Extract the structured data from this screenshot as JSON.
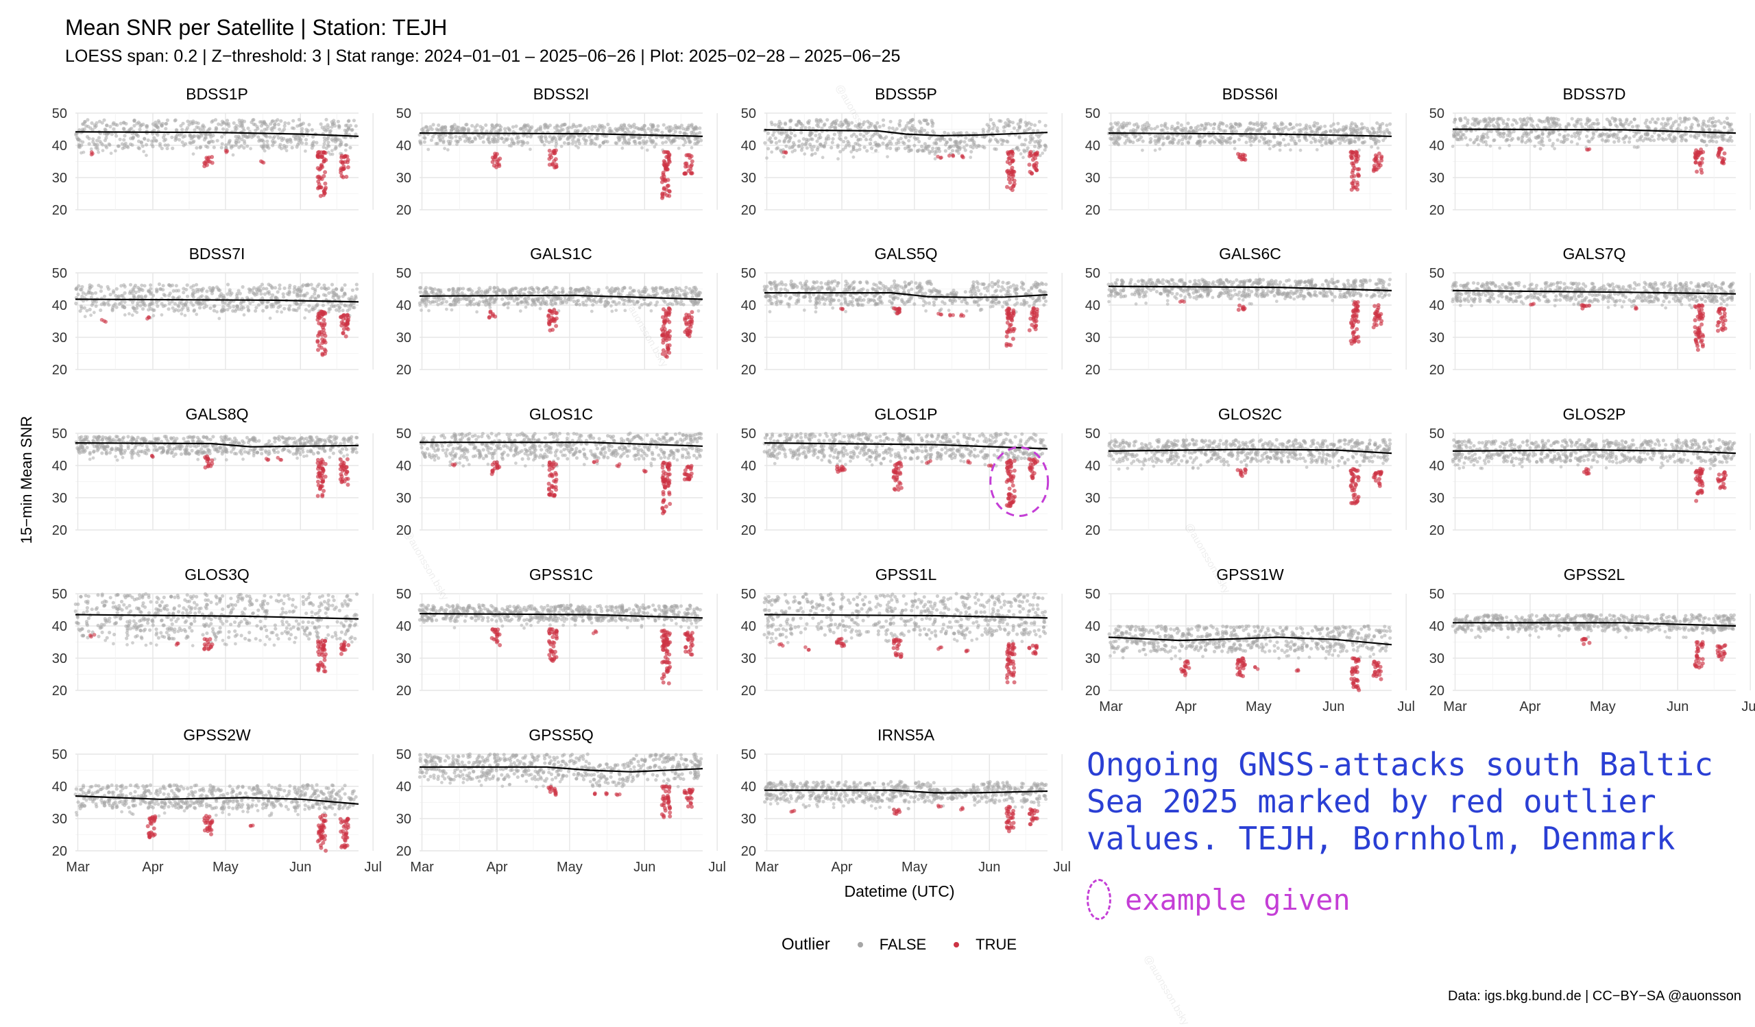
{
  "title": "Mean SNR per Satellite | Station: TEJH",
  "subtitle": "LOESS span: 0.2 | Z−threshold: 3 | Stat range: 2024−01−01 – 2025−06−26 | Plot: 2025−02−28 – 2025−06−25",
  "annotation": {
    "text": "Ongoing GNSS-attacks south Baltic Sea 2025 marked by red outlier values. TEJH, Bornholm, Denmark",
    "example_label": "example given",
    "color": "#2a3fd4",
    "example_color": "#c43ed6",
    "example_panel": "GLOS1P"
  },
  "legend": {
    "title": "Outlier",
    "items": [
      {
        "label": "FALSE",
        "color": "#a6a6a6"
      },
      {
        "label": "TRUE",
        "color": "#cc3344"
      }
    ]
  },
  "caption": "Data: igs.bkg.bund.de | CC−BY−SA @auonsson",
  "watermark": "@auonsson.bsky",
  "chart_data": {
    "type": "scatter",
    "facet_layout": "5 columns, 5 rows, 23 panels",
    "xlabel": "Datetime (UTC)",
    "ylabel": "15−min Mean SNR",
    "xlim": [
      "2025-02-28",
      "2025-06-25"
    ],
    "ylim": [
      20,
      50
    ],
    "x_ticks": [
      "Mar",
      "Apr",
      "May",
      "Jun",
      "Jul"
    ],
    "y_ticks": [
      20,
      30,
      40,
      50
    ],
    "grid": true,
    "legend_position": "bottom",
    "series_colors": {
      "FALSE": "#a6a6a6",
      "TRUE": "#cc3344",
      "LOESS": "#000000"
    },
    "panels": [
      {
        "name": "BDSS1P",
        "band": [
          39,
          48
        ],
        "loess": [
          [
            0,
            44.2
          ],
          [
            0.5,
            44.0
          ],
          [
            0.8,
            43.5
          ],
          [
            1,
            42.8
          ]
        ],
        "outliers": [
          [
            0.06,
            37.5
          ],
          [
            0.47,
            36.5,
            33
          ],
          [
            0.53,
            38
          ],
          [
            0.66,
            35
          ],
          [
            0.87,
            38,
            24
          ],
          [
            0.95,
            37,
            30
          ]
        ]
      },
      {
        "name": "BDSS2I",
        "band": [
          40.5,
          46.5
        ],
        "loess": [
          [
            0,
            43.8
          ],
          [
            0.6,
            43.6
          ],
          [
            1,
            42.8
          ]
        ],
        "outliers": [
          [
            0.27,
            37.5,
            33
          ],
          [
            0.47,
            38.5,
            33
          ],
          [
            0.87,
            38,
            23.5
          ],
          [
            0.95,
            37,
            31
          ]
        ]
      },
      {
        "name": "BDSS5P",
        "band": [
          38,
          48
        ],
        "loess": [
          [
            0,
            44.8
          ],
          [
            0.4,
            44.5
          ],
          [
            0.5,
            43.5
          ],
          [
            0.62,
            43.0
          ],
          [
            0.75,
            43.2
          ],
          [
            1,
            44.0
          ]
        ],
        "outliers": [
          [
            0.07,
            37.5
          ],
          [
            0.62,
            36.5
          ],
          [
            0.66,
            36.5
          ],
          [
            0.7,
            36.5
          ],
          [
            0.87,
            38,
            26
          ],
          [
            0.95,
            38,
            31
          ]
        ],
        "dip": [
          0.6,
          0.75,
          38
        ]
      },
      {
        "name": "BDSS6I",
        "band": [
          40.5,
          47
        ],
        "loess": [
          [
            0,
            43.8
          ],
          [
            0.6,
            43.5
          ],
          [
            1,
            42.8
          ]
        ],
        "outliers": [
          [
            0.47,
            38,
            35
          ],
          [
            0.87,
            38,
            26
          ],
          [
            0.95,
            38,
            32
          ]
        ]
      },
      {
        "name": "BDSS7D",
        "band": [
          41,
          48.5
        ],
        "loess": [
          [
            0,
            45.0
          ],
          [
            0.6,
            44.8
          ],
          [
            1,
            43.8
          ]
        ],
        "outliers": [
          [
            0.48,
            38.5
          ],
          [
            0.87,
            39,
            31
          ],
          [
            0.95,
            39,
            34
          ]
        ]
      },
      {
        "name": "BDSS7I",
        "band": [
          38,
          46.5
        ],
        "loess": [
          [
            0,
            41.8
          ],
          [
            0.7,
            41.5
          ],
          [
            1,
            41.0
          ]
        ],
        "outliers": [
          [
            0.1,
            35
          ],
          [
            0.26,
            36
          ],
          [
            0.87,
            38,
            24.5
          ],
          [
            0.95,
            37,
            29
          ]
        ]
      },
      {
        "name": "GALS1C",
        "band": [
          40,
          45.5
        ],
        "loess": [
          [
            0,
            42.8
          ],
          [
            0.55,
            43.0
          ],
          [
            1,
            41.8
          ]
        ],
        "outliers": [
          [
            0.26,
            38,
            36
          ],
          [
            0.47,
            38.5,
            31
          ],
          [
            0.87,
            39,
            23.5
          ],
          [
            0.95,
            38,
            30
          ]
        ]
      },
      {
        "name": "GALS5Q",
        "band": [
          40,
          47.5
        ],
        "loess": [
          [
            0,
            43.8
          ],
          [
            0.45,
            43.8
          ],
          [
            0.58,
            42.6
          ],
          [
            0.72,
            42.4
          ],
          [
            0.85,
            42.5
          ],
          [
            1,
            43.2
          ]
        ],
        "outliers": [
          [
            0.27,
            39
          ],
          [
            0.47,
            39,
            36
          ],
          [
            0.62,
            37
          ],
          [
            0.66,
            37
          ],
          [
            0.7,
            37
          ],
          [
            0.87,
            39,
            27
          ],
          [
            0.95,
            39,
            32
          ]
        ],
        "dip": [
          0.6,
          0.73,
          40.5
        ]
      },
      {
        "name": "GALS6C",
        "band": [
          42.5,
          48
        ],
        "loess": [
          [
            0,
            45.8
          ],
          [
            0.6,
            45.5
          ],
          [
            1,
            44.5
          ]
        ],
        "outliers": [
          [
            0.26,
            41
          ],
          [
            0.47,
            40,
            38
          ],
          [
            0.87,
            41,
            28
          ],
          [
            0.95,
            40,
            33
          ]
        ]
      },
      {
        "name": "GALS7Q",
        "band": [
          41,
          47
        ],
        "loess": [
          [
            0,
            44.5
          ],
          [
            0.6,
            44.0
          ],
          [
            1,
            43.5
          ]
        ],
        "outliers": [
          [
            0.28,
            40
          ],
          [
            0.47,
            40,
            38
          ],
          [
            0.65,
            39
          ],
          [
            0.87,
            40,
            26
          ],
          [
            0.95,
            39,
            32
          ]
        ]
      },
      {
        "name": "GALS8Q",
        "band": [
          43.5,
          49
        ],
        "loess": [
          [
            0,
            47.0
          ],
          [
            0.48,
            46.8
          ],
          [
            0.62,
            45.8
          ],
          [
            0.78,
            46.0
          ],
          [
            1,
            46.2
          ]
        ],
        "outliers": [
          [
            0.27,
            43
          ],
          [
            0.47,
            43,
            39
          ],
          [
            0.68,
            42
          ],
          [
            0.72,
            42
          ],
          [
            0.87,
            42,
            30
          ],
          [
            0.95,
            42,
            34
          ]
        ]
      },
      {
        "name": "GLOS1C",
        "band": [
          42,
          50
        ],
        "loess": [
          [
            0,
            47.2
          ],
          [
            0.6,
            47.2
          ],
          [
            1,
            46.0
          ]
        ],
        "outliers": [
          [
            0.12,
            40
          ],
          [
            0.27,
            41,
            37
          ],
          [
            0.47,
            41,
            30.5
          ],
          [
            0.62,
            41
          ],
          [
            0.7,
            40
          ],
          [
            0.8,
            38
          ],
          [
            0.87,
            41,
            25
          ],
          [
            0.95,
            40,
            34
          ]
        ]
      },
      {
        "name": "GLOS1P",
        "band": [
          42,
          50
        ],
        "loess": [
          [
            0,
            47.0
          ],
          [
            0.6,
            46.5
          ],
          [
            1,
            45.2
          ]
        ],
        "outliers": [
          [
            0.27,
            41,
            38
          ],
          [
            0.47,
            41,
            32
          ],
          [
            0.58,
            41
          ],
          [
            0.72,
            41
          ],
          [
            0.8,
            40
          ],
          [
            0.87,
            42,
            27
          ],
          [
            0.95,
            42,
            36
          ]
        ],
        "highlight": [
          0.9,
          35
        ]
      },
      {
        "name": "GLOS2C",
        "band": [
          41,
          48
        ],
        "loess": [
          [
            0,
            44.5
          ],
          [
            0.5,
            45.0
          ],
          [
            0.8,
            44.8
          ],
          [
            1,
            43.8
          ]
        ],
        "outliers": [
          [
            0.47,
            39,
            36.5
          ],
          [
            0.87,
            39,
            28
          ],
          [
            0.95,
            38,
            33
          ]
        ]
      },
      {
        "name": "GLOS2P",
        "band": [
          41,
          48
        ],
        "loess": [
          [
            0,
            44.5
          ],
          [
            0.5,
            44.8
          ],
          [
            0.8,
            44.5
          ],
          [
            1,
            43.8
          ]
        ],
        "outliers": [
          [
            0.47,
            39,
            37
          ],
          [
            0.87,
            39,
            29
          ],
          [
            0.95,
            38,
            33
          ]
        ]
      },
      {
        "name": "GLOS3Q",
        "band": [
          36,
          50
        ],
        "loess": [
          [
            0,
            43.5
          ],
          [
            0.6,
            43.0
          ],
          [
            1,
            42.2
          ]
        ],
        "outliers": [
          [
            0.06,
            37
          ],
          [
            0.36,
            34.5
          ],
          [
            0.47,
            36,
            32
          ],
          [
            0.87,
            36,
            25.5
          ],
          [
            0.95,
            35,
            31
          ]
        ]
      },
      {
        "name": "GPSS1C",
        "band": [
          41.5,
          46.5
        ],
        "loess": [
          [
            0,
            43.8
          ],
          [
            0.6,
            43.5
          ],
          [
            1,
            42.5
          ]
        ],
        "outliers": [
          [
            0.27,
            39,
            34
          ],
          [
            0.47,
            39,
            29
          ],
          [
            0.62,
            38
          ],
          [
            0.87,
            39,
            22
          ],
          [
            0.95,
            38,
            31
          ]
        ]
      },
      {
        "name": "GPSS1L",
        "band": [
          37,
          50
        ],
        "loess": [
          [
            0,
            43.5
          ],
          [
            0.6,
            43.2
          ],
          [
            1,
            42.5
          ]
        ],
        "outliers": [
          [
            0.06,
            34
          ],
          [
            0.15,
            33
          ],
          [
            0.27,
            36,
            33
          ],
          [
            0.47,
            36,
            30
          ],
          [
            0.62,
            33
          ],
          [
            0.72,
            32
          ],
          [
            0.87,
            35,
            22.5
          ],
          [
            0.95,
            34,
            31
          ]
        ]
      },
      {
        "name": "GPSS1W",
        "band": [
          32,
          40
        ],
        "loess": [
          [
            0,
            36.5
          ],
          [
            0.25,
            35.5
          ],
          [
            0.45,
            36.0
          ],
          [
            0.6,
            36.5
          ],
          [
            0.8,
            35.8
          ],
          [
            1,
            34.2
          ]
        ],
        "outliers": [
          [
            0.27,
            29,
            24.5
          ],
          [
            0.47,
            30,
            23
          ],
          [
            0.52,
            27
          ],
          [
            0.67,
            26
          ],
          [
            0.87,
            30,
            20
          ],
          [
            0.95,
            29,
            23
          ]
        ]
      },
      {
        "name": "GPSS2L",
        "band": [
          38.5,
          43.5
        ],
        "loess": [
          [
            0,
            41.0
          ],
          [
            0.6,
            41.0
          ],
          [
            1,
            40.0
          ]
        ],
        "outliers": [
          [
            0.47,
            36,
            34
          ],
          [
            0.87,
            35,
            27
          ],
          [
            0.95,
            34,
            29
          ]
        ]
      },
      {
        "name": "GPSS2W",
        "band": [
          33,
          40.5
        ],
        "loess": [
          [
            0,
            37.0
          ],
          [
            0.3,
            36.0
          ],
          [
            0.6,
            36.5
          ],
          [
            0.8,
            36.0
          ],
          [
            1,
            34.5
          ]
        ],
        "outliers": [
          [
            0.27,
            31,
            24
          ],
          [
            0.47,
            31,
            24.5
          ],
          [
            0.62,
            28
          ],
          [
            0.87,
            31,
            20
          ],
          [
            0.95,
            30,
            21
          ]
        ]
      },
      {
        "name": "GPSS5Q",
        "band": [
          42,
          50
        ],
        "loess": [
          [
            0,
            46.0
          ],
          [
            0.45,
            46.0
          ],
          [
            0.6,
            45.0
          ],
          [
            0.75,
            44.5
          ],
          [
            1,
            45.5
          ]
        ],
        "outliers": [
          [
            0.47,
            40,
            37
          ],
          [
            0.62,
            37.5
          ],
          [
            0.66,
            37.5
          ],
          [
            0.7,
            37.5
          ],
          [
            0.87,
            40,
            30
          ],
          [
            0.95,
            39,
            33
          ]
        ],
        "dip": [
          0.6,
          0.73,
          40
        ]
      },
      {
        "name": "IRNS5A",
        "band": [
          35,
          41.5
        ],
        "loess": [
          [
            0,
            38.8
          ],
          [
            0.45,
            38.8
          ],
          [
            0.6,
            38.0
          ],
          [
            0.75,
            38.0
          ],
          [
            1,
            38.5
          ]
        ],
        "outliers": [
          [
            0.1,
            32
          ],
          [
            0.47,
            33,
            31
          ],
          [
            0.62,
            34
          ],
          [
            0.7,
            33
          ],
          [
            0.87,
            34,
            26
          ],
          [
            0.95,
            33,
            28
          ]
        ],
        "dip": [
          0.6,
          0.73,
          36
        ]
      }
    ]
  }
}
